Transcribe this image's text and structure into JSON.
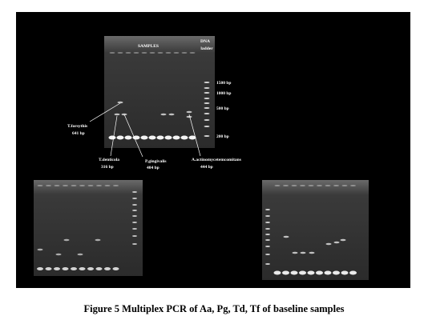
{
  "figure": {
    "top_gel": {
      "samples_label": "SAMPLES",
      "ladder_label": [
        "DNA",
        "ladder"
      ],
      "ladder_sizes": [
        "1500 bp",
        "1000 bp",
        "500 bp",
        "200 bp"
      ],
      "annotations": [
        {
          "name": "T.forsythis",
          "size": "641 bp"
        },
        {
          "name": "T.denticola",
          "size": "316 bp"
        },
        {
          "name": "P.gingivalis",
          "size": "404 bp"
        },
        {
          "name": "A.actinomycetemcomitans",
          "size": "444 bp"
        }
      ]
    },
    "caption": "Figure 5 Multiplex PCR of Aa, Pg, Td, Tf of baseline samples"
  }
}
